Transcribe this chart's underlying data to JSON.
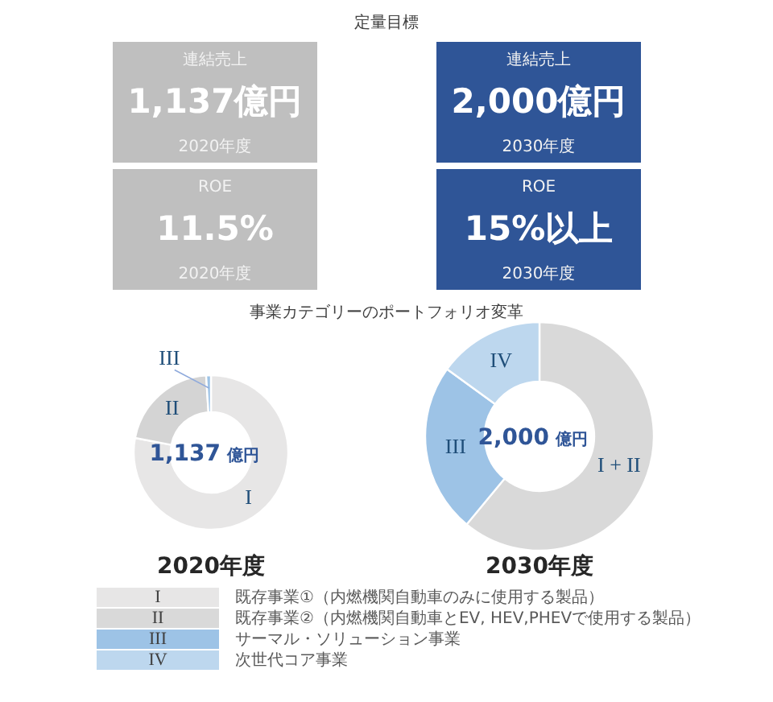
{
  "chart_data": [
    {
      "type": "other",
      "title": "定量目標",
      "annotations": [
        "連結売上",
        "1,137億円",
        "2020年度",
        "連結売上",
        "2,000億円",
        "2030年度",
        "ROE",
        "11.5%",
        "2020年度",
        "ROE",
        "15%以上",
        "2030年度"
      ],
      "colors": [
        "#bfbfbf",
        "#2f5597",
        "#bfbfbf",
        "#2f5597"
      ]
    },
    {
      "type": "donut",
      "title": "事業カテゴリーのポートフォリオ変革",
      "xlabel": "2020年度",
      "categories": [
        "I",
        "II",
        "III"
      ],
      "values": [
        78,
        21,
        1
      ],
      "colors": [
        "#e7e6e6",
        "#d4d4d4",
        "#9dc3e6"
      ],
      "annotations": [
        "1,137",
        "億円"
      ]
    },
    {
      "type": "donut",
      "xlabel": "2030年度",
      "categories": [
        "I + II",
        "III",
        "IV"
      ],
      "values": [
        61,
        24,
        15
      ],
      "colors": [
        "#d9d9d9",
        "#9dc3e6",
        "#bdd7ee"
      ],
      "annotations": [
        "2,000",
        "億円"
      ]
    },
    {
      "type": "other",
      "categories": [
        "I",
        "II",
        "III",
        "IV"
      ],
      "colors": [
        "#e7e6e6",
        "#d9d9d9",
        "#9dc3e6",
        "#bdd7ee"
      ],
      "annotations": [
        "既存事業①（内燃機関自動車のみに使用する製品）",
        "既存事業②（内燃機関自動車とEV, HEV,PHEVで使用する製品）",
        "サーマル・ソリューション事業",
        "次世代コア事業"
      ]
    }
  ]
}
